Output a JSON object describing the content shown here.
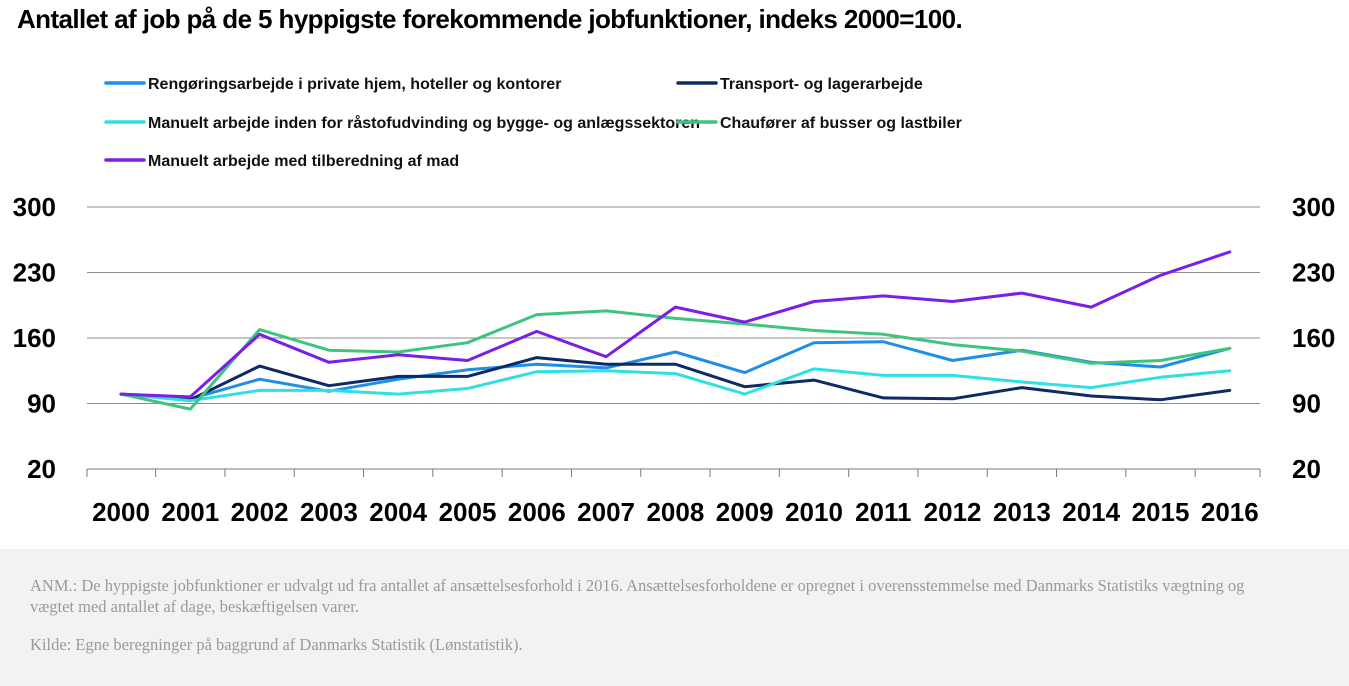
{
  "chart_data": {
    "type": "line",
    "title": "Antallet af job på de 5 hyppigste forekommende jobfunktioner, indeks 2000=100.",
    "x": [
      "2000",
      "2001",
      "2002",
      "2003",
      "2004",
      "2005",
      "2006",
      "2007",
      "2008",
      "2009",
      "2010",
      "2011",
      "2012",
      "2013",
      "2014",
      "2015",
      "2016"
    ],
    "ylim": [
      20,
      300
    ],
    "yticks": [
      "20",
      "90",
      "160",
      "230",
      "300"
    ],
    "grid": true,
    "legend_position": "top",
    "series": [
      {
        "name": "Rengøringsarbejde i private hjem, hoteller og kontorer",
        "color": "#1f8ee6",
        "values": [
          100,
          95,
          116,
          103,
          116,
          126,
          132,
          128,
          145,
          123,
          155,
          156,
          136,
          147,
          134,
          129,
          149
        ]
      },
      {
        "name": "Transport- og lagerarbejde",
        "color": "#0d2a66",
        "values": [
          100,
          94,
          130,
          109,
          119,
          119,
          139,
          132,
          132,
          108,
          115,
          96,
          95,
          107,
          98,
          94,
          104
        ]
      },
      {
        "name": "Manuelt arbejde inden for råstofudvinding og bygge- og anlægssektoren",
        "color": "#2fe0e3",
        "values": [
          100,
          93,
          104,
          104,
          100,
          106,
          124,
          125,
          122,
          100,
          127,
          120,
          120,
          113,
          107,
          118,
          125
        ]
      },
      {
        "name": "Chaufører af busser og lastbiler",
        "color": "#3ec47e",
        "values": [
          100,
          84,
          169,
          147,
          145,
          155,
          185,
          189,
          181,
          175,
          168,
          164,
          153,
          146,
          133,
          136,
          149
        ]
      },
      {
        "name": "Manuelt arbejde med tilberedning af mad",
        "color": "#7a1fe8",
        "values": [
          100,
          97,
          164,
          134,
          142,
          136,
          167,
          140,
          193,
          177,
          199,
          205,
          199,
          208,
          193,
          227,
          252
        ]
      }
    ]
  },
  "note": "ANM.: De hyppigste jobfunktioner er udvalgt ud fra antallet af ansættelsesforhold i 2016. Ansættelsesforholdene er opregnet i overensstemmelse med Danmarks Statistiks vægtning og vægtet med antallet af dage, beskæftigelsen varer.",
  "source": "Kilde: Egne beregninger på baggrund af Danmarks Statistik (Lønstatistik)."
}
